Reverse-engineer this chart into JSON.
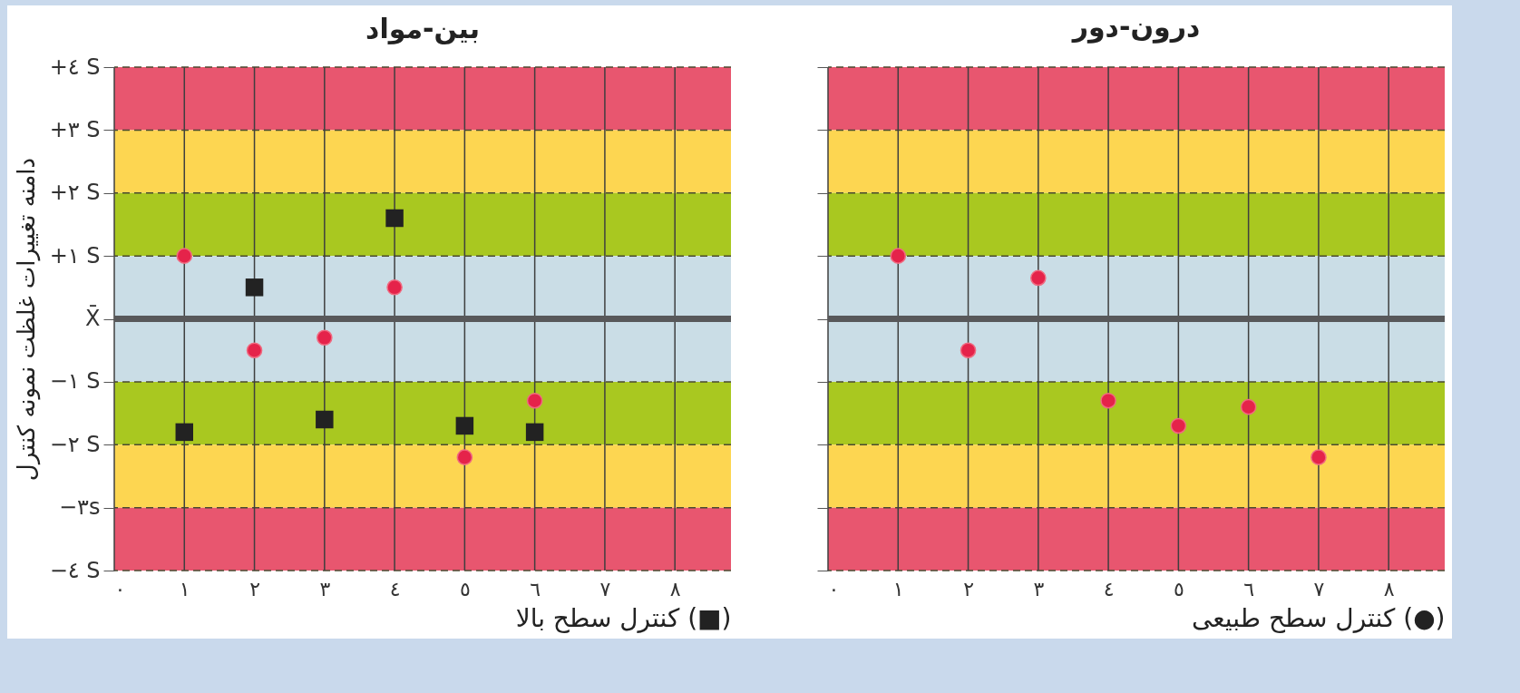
{
  "chart_data": [
    {
      "type": "scatter",
      "title": "بین-مواد",
      "xlabel": "کنترل سطح بالا (■)",
      "ylabel": "دامنه تغییرات غلظت نمونه کنترل",
      "xlim": [
        0,
        8.8
      ],
      "xticks": [
        {
          "value": 0,
          "label": "٠"
        },
        {
          "value": 1,
          "label": "١"
        },
        {
          "value": 2,
          "label": "٢"
        },
        {
          "value": 3,
          "label": "٣"
        },
        {
          "value": 4,
          "label": "٤"
        },
        {
          "value": 5,
          "label": "٥"
        },
        {
          "value": 6,
          "label": "٦"
        },
        {
          "value": 7,
          "label": "٧"
        },
        {
          "value": 8,
          "label": "٨"
        }
      ],
      "ylim": [
        -4,
        4
      ],
      "yticks": [
        {
          "value": 4,
          "label": "+٤ S"
        },
        {
          "value": 3,
          "label": "+٣ S"
        },
        {
          "value": 2,
          "label": "+٢ S"
        },
        {
          "value": 1,
          "label": "+١ S"
        },
        {
          "value": 0,
          "label": "X̄"
        },
        {
          "value": -1,
          "label": "−١ S"
        },
        {
          "value": -2,
          "label": "−٢ S"
        },
        {
          "value": -3,
          "label": "−٣s"
        },
        {
          "value": -4,
          "label": "−٤ S"
        }
      ],
      "grid": true,
      "bands": [
        {
          "axis": "y",
          "from": 3,
          "to": 4,
          "color": "#e8566f"
        },
        {
          "axis": "y",
          "from": 2,
          "to": 3,
          "color": "#fdd651"
        },
        {
          "axis": "y",
          "from": 1,
          "to": 2,
          "color": "#a9c820"
        },
        {
          "axis": "y",
          "from": -1,
          "to": 1,
          "color": "#cadde6"
        },
        {
          "axis": "y",
          "from": -2,
          "to": -1,
          "color": "#a9c820"
        },
        {
          "axis": "y",
          "from": -3,
          "to": -2,
          "color": "#fdd651"
        },
        {
          "axis": "y",
          "from": -4,
          "to": -3,
          "color": "#e8566f"
        }
      ],
      "ref_lines": [
        {
          "axis": "y",
          "value": 0,
          "color": "#58585a"
        }
      ],
      "series": [
        {
          "color": "#e5234a",
          "marker": "circle",
          "x": [
            1,
            2,
            3,
            4,
            5,
            6
          ],
          "values": [
            1.0,
            -0.5,
            -0.3,
            0.5,
            -2.2,
            -1.3
          ]
        },
        {
          "color": "#222222",
          "marker": "square",
          "x": [
            1,
            2,
            3,
            4,
            5,
            6
          ],
          "values": [
            -1.8,
            0.5,
            -1.6,
            1.6,
            -1.7,
            -1.8
          ]
        }
      ]
    },
    {
      "type": "scatter",
      "title": "درون-دور",
      "xlabel": "کنترل سطح طبیعی (●)",
      "xlim": [
        0,
        8.8
      ],
      "xticks": [
        {
          "value": 0,
          "label": "٠"
        },
        {
          "value": 1,
          "label": "١"
        },
        {
          "value": 2,
          "label": "٢"
        },
        {
          "value": 3,
          "label": "٣"
        },
        {
          "value": 4,
          "label": "٤"
        },
        {
          "value": 5,
          "label": "٥"
        },
        {
          "value": 6,
          "label": "٦"
        },
        {
          "value": 7,
          "label": "٧"
        },
        {
          "value": 8,
          "label": "٨"
        }
      ],
      "ylim": [
        -4,
        4
      ],
      "yticks": [
        4,
        3,
        2,
        1,
        0,
        -1,
        -2,
        -3,
        -4
      ],
      "grid": true,
      "tick_labels": "x",
      "bands": [
        {
          "axis": "y",
          "from": 3,
          "to": 4,
          "color": "#e8566f"
        },
        {
          "axis": "y",
          "from": 2,
          "to": 3,
          "color": "#fdd651"
        },
        {
          "axis": "y",
          "from": 1,
          "to": 2,
          "color": "#a9c820"
        },
        {
          "axis": "y",
          "from": -1,
          "to": 1,
          "color": "#cadde6"
        },
        {
          "axis": "y",
          "from": -2,
          "to": -1,
          "color": "#a9c820"
        },
        {
          "axis": "y",
          "from": -3,
          "to": -2,
          "color": "#fdd651"
        },
        {
          "axis": "y",
          "from": -4,
          "to": -3,
          "color": "#e8566f"
        }
      ],
      "ref_lines": [
        {
          "axis": "y",
          "value": 0,
          "color": "#58585a"
        }
      ],
      "series": [
        {
          "color": "#e5234a",
          "marker": "circle",
          "x": [
            1,
            2,
            3,
            4,
            5,
            6,
            7
          ],
          "values": [
            1.0,
            -0.5,
            0.65,
            -1.3,
            -1.7,
            -1.4,
            -2.2
          ]
        }
      ]
    }
  ]
}
